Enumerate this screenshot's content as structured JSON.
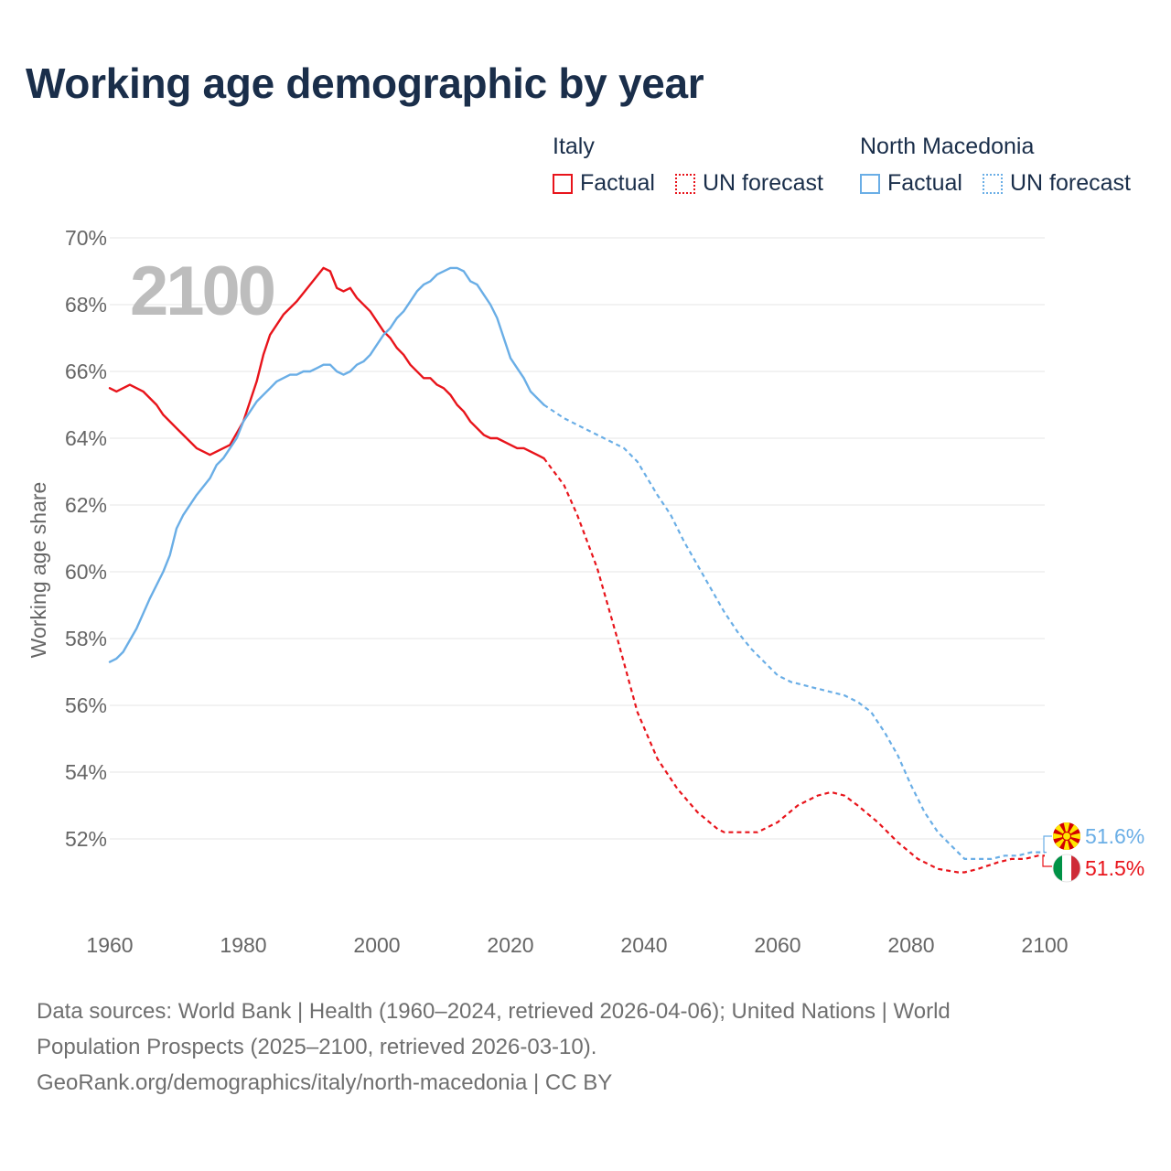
{
  "page": {
    "title": "Working age demographic by year",
    "footer_sources_line1": "Data sources: World Bank | Health (1960–2024, retrieved 2026-04-06); United Nations | World",
    "footer_sources_line2": "Population Prospects (2025–2100, retrieved 2026-03-10).",
    "footer_link": "GeoRank.org/demographics/italy/north-macedonia | CC BY"
  },
  "legend": {
    "italy": {
      "name": "Italy",
      "factual": "Factual",
      "forecast": "UN forecast"
    },
    "north_macedonia": {
      "name": "North Macedonia",
      "factual": "Factual",
      "forecast": "UN forecast"
    }
  },
  "colors": {
    "italy": "#e8141b",
    "north_macedonia": "#6aaee6",
    "grid": "#e6e6e6",
    "axis_text": "#666666",
    "year_watermark": "#bdbdbd"
  },
  "chart_data": {
    "type": "line",
    "title": "Working age demographic by year",
    "ylabel": "Working age share",
    "xlabel": "",
    "year_watermark": "2100",
    "xlim": [
      1960,
      2100
    ],
    "ylim": [
      50,
      70
    ],
    "x_ticks": [
      1960,
      1980,
      2000,
      2020,
      2040,
      2060,
      2080,
      2100
    ],
    "y_ticks": [
      52,
      54,
      56,
      58,
      60,
      62,
      64,
      66,
      68,
      70
    ],
    "y_tick_labels": [
      "52%",
      "54%",
      "56%",
      "58%",
      "60%",
      "62%",
      "64%",
      "66%",
      "68%",
      "70%"
    ],
    "forecast_start_year": 2025,
    "grid": true,
    "series": [
      {
        "name": "Italy",
        "color": "#e8141b",
        "flag_icon": "italy-flag-icon",
        "end_label": "51.5%",
        "factual": [
          [
            1960,
            65.5
          ],
          [
            1961,
            65.4
          ],
          [
            1963,
            65.6
          ],
          [
            1965,
            65.4
          ],
          [
            1967,
            65.0
          ],
          [
            1968,
            64.7
          ],
          [
            1970,
            64.3
          ],
          [
            1973,
            63.7
          ],
          [
            1975,
            63.5
          ],
          [
            1978,
            63.8
          ],
          [
            1980,
            64.5
          ],
          [
            1982,
            65.7
          ],
          [
            1983,
            66.5
          ],
          [
            1984,
            67.1
          ],
          [
            1986,
            67.7
          ],
          [
            1988,
            68.1
          ],
          [
            1990,
            68.6
          ],
          [
            1992,
            69.1
          ],
          [
            1993,
            69.0
          ],
          [
            1994,
            68.5
          ],
          [
            1995,
            68.4
          ],
          [
            1996,
            68.5
          ],
          [
            1997,
            68.2
          ],
          [
            1999,
            67.8
          ],
          [
            2001,
            67.2
          ],
          [
            2002,
            67.0
          ],
          [
            2003,
            66.7
          ],
          [
            2004,
            66.5
          ],
          [
            2005,
            66.2
          ],
          [
            2007,
            65.8
          ],
          [
            2008,
            65.8
          ],
          [
            2009,
            65.6
          ],
          [
            2010,
            65.5
          ],
          [
            2011,
            65.3
          ],
          [
            2012,
            65.0
          ],
          [
            2013,
            64.8
          ],
          [
            2014,
            64.5
          ],
          [
            2016,
            64.1
          ],
          [
            2017,
            64.0
          ],
          [
            2018,
            64.0
          ],
          [
            2020,
            63.8
          ],
          [
            2021,
            63.7
          ],
          [
            2022,
            63.7
          ],
          [
            2024,
            63.5
          ],
          [
            2025,
            63.4
          ]
        ],
        "forecast": [
          [
            2025,
            63.4
          ],
          [
            2028,
            62.6
          ],
          [
            2030,
            61.7
          ],
          [
            2033,
            60.1
          ],
          [
            2036,
            58.0
          ],
          [
            2039,
            55.8
          ],
          [
            2042,
            54.4
          ],
          [
            2045,
            53.5
          ],
          [
            2048,
            52.8
          ],
          [
            2051,
            52.3
          ],
          [
            2052,
            52.2
          ],
          [
            2054,
            52.2
          ],
          [
            2057,
            52.2
          ],
          [
            2060,
            52.5
          ],
          [
            2063,
            53.0
          ],
          [
            2066,
            53.3
          ],
          [
            2068,
            53.4
          ],
          [
            2070,
            53.3
          ],
          [
            2072,
            53.0
          ],
          [
            2075,
            52.5
          ],
          [
            2078,
            51.9
          ],
          [
            2081,
            51.4
          ],
          [
            2084,
            51.1
          ],
          [
            2087,
            51.0
          ],
          [
            2088,
            51.0
          ],
          [
            2090,
            51.1
          ],
          [
            2093,
            51.3
          ],
          [
            2095,
            51.4
          ],
          [
            2097,
            51.4
          ],
          [
            2099,
            51.5
          ],
          [
            2100,
            51.5
          ]
        ]
      },
      {
        "name": "North Macedonia",
        "color": "#6aaee6",
        "flag_icon": "north-macedonia-flag-icon",
        "end_label": "51.6%",
        "factual": [
          [
            1960,
            57.3
          ],
          [
            1961,
            57.4
          ],
          [
            1962,
            57.6
          ],
          [
            1964,
            58.3
          ],
          [
            1966,
            59.2
          ],
          [
            1968,
            60.0
          ],
          [
            1969,
            60.5
          ],
          [
            1970,
            61.3
          ],
          [
            1971,
            61.7
          ],
          [
            1973,
            62.3
          ],
          [
            1975,
            62.8
          ],
          [
            1976,
            63.2
          ],
          [
            1977,
            63.4
          ],
          [
            1979,
            64.0
          ],
          [
            1980,
            64.5
          ],
          [
            1982,
            65.1
          ],
          [
            1984,
            65.5
          ],
          [
            1985,
            65.7
          ],
          [
            1987,
            65.9
          ],
          [
            1988,
            65.9
          ],
          [
            1989,
            66.0
          ],
          [
            1990,
            66.0
          ],
          [
            1991,
            66.1
          ],
          [
            1992,
            66.2
          ],
          [
            1993,
            66.2
          ],
          [
            1994,
            66.0
          ],
          [
            1995,
            65.9
          ],
          [
            1996,
            66.0
          ],
          [
            1997,
            66.2
          ],
          [
            1998,
            66.3
          ],
          [
            1999,
            66.5
          ],
          [
            2000,
            66.8
          ],
          [
            2001,
            67.1
          ],
          [
            2002,
            67.3
          ],
          [
            2003,
            67.6
          ],
          [
            2004,
            67.8
          ],
          [
            2005,
            68.1
          ],
          [
            2006,
            68.4
          ],
          [
            2007,
            68.6
          ],
          [
            2008,
            68.7
          ],
          [
            2009,
            68.9
          ],
          [
            2011,
            69.1
          ],
          [
            2012,
            69.1
          ],
          [
            2013,
            69.0
          ],
          [
            2014,
            68.7
          ],
          [
            2015,
            68.6
          ],
          [
            2016,
            68.3
          ],
          [
            2017,
            68.0
          ],
          [
            2018,
            67.6
          ],
          [
            2019,
            67.0
          ],
          [
            2020,
            66.4
          ],
          [
            2021,
            66.1
          ],
          [
            2022,
            65.8
          ],
          [
            2023,
            65.4
          ],
          [
            2024,
            65.2
          ],
          [
            2025,
            65.0
          ]
        ],
        "forecast": [
          [
            2025,
            65.0
          ],
          [
            2028,
            64.6
          ],
          [
            2031,
            64.3
          ],
          [
            2034,
            64.0
          ],
          [
            2037,
            63.7
          ],
          [
            2039,
            63.3
          ],
          [
            2042,
            62.3
          ],
          [
            2044,
            61.7
          ],
          [
            2046,
            60.9
          ],
          [
            2048,
            60.2
          ],
          [
            2050,
            59.5
          ],
          [
            2052,
            58.8
          ],
          [
            2054,
            58.2
          ],
          [
            2056,
            57.7
          ],
          [
            2058,
            57.3
          ],
          [
            2060,
            56.9
          ],
          [
            2062,
            56.7
          ],
          [
            2064,
            56.6
          ],
          [
            2066,
            56.5
          ],
          [
            2068,
            56.4
          ],
          [
            2070,
            56.3
          ],
          [
            2072,
            56.1
          ],
          [
            2074,
            55.8
          ],
          [
            2076,
            55.2
          ],
          [
            2078,
            54.5
          ],
          [
            2080,
            53.6
          ],
          [
            2082,
            52.8
          ],
          [
            2084,
            52.2
          ],
          [
            2086,
            51.8
          ],
          [
            2088,
            51.4
          ],
          [
            2090,
            51.4
          ],
          [
            2092,
            51.4
          ],
          [
            2094,
            51.5
          ],
          [
            2096,
            51.5
          ],
          [
            2098,
            51.6
          ],
          [
            2100,
            51.6
          ]
        ]
      }
    ]
  }
}
